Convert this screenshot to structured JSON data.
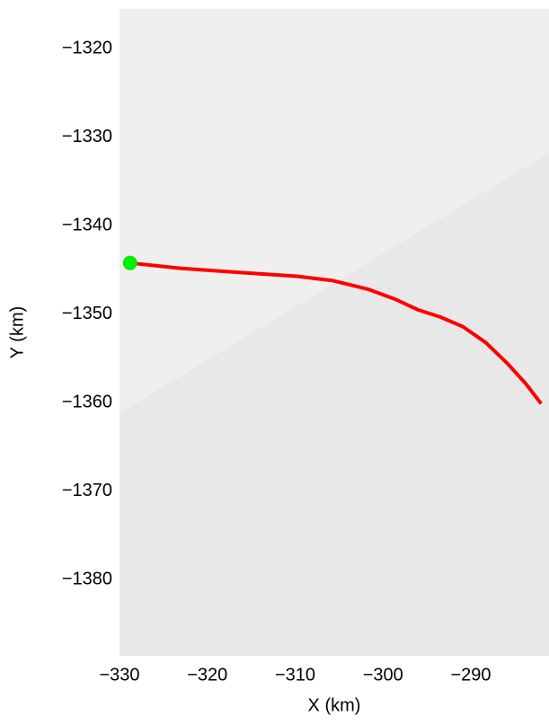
{
  "chart_data": {
    "type": "line",
    "xlabel": "X (km)",
    "ylabel": "Y (km)",
    "x": [
      -328.8,
      -323.1,
      -316.0,
      -309.8,
      -305.7,
      -301.6,
      -298.6,
      -296.0,
      -293.5,
      -290.9,
      -288.3,
      -285.8,
      -283.7,
      -282.0
    ],
    "series": [
      {
        "color": "#ff0000",
        "values": [
          -1344.2,
          -1344.8,
          -1345.3,
          -1345.7,
          -1346.2,
          -1347.2,
          -1348.3,
          -1349.5,
          -1350.3,
          -1351.4,
          -1353.2,
          -1355.6,
          -1357.9,
          -1360.1
        ]
      }
    ],
    "start_marker": {
      "x": -328.8,
      "y": -1344.2,
      "color": "#00ee00"
    },
    "xlim": [
      -330,
      -281.1
    ],
    "ylim": [
      -1388.6,
      -1315.5
    ],
    "xticks": [
      {
        "value": -330,
        "label": "−330"
      },
      {
        "value": -320,
        "label": "−320"
      },
      {
        "value": -310,
        "label": "−310"
      },
      {
        "value": -300,
        "label": "−300"
      },
      {
        "value": -290,
        "label": "−290"
      }
    ],
    "yticks": [
      {
        "value": -1320,
        "label": "−1320"
      },
      {
        "value": -1330,
        "label": "−1330"
      },
      {
        "value": -1340,
        "label": "−1340"
      },
      {
        "value": -1350,
        "label": "−1350"
      },
      {
        "value": -1360,
        "label": "−1360"
      },
      {
        "value": -1370,
        "label": "−1370"
      },
      {
        "value": -1380,
        "label": "−1380"
      }
    ]
  }
}
